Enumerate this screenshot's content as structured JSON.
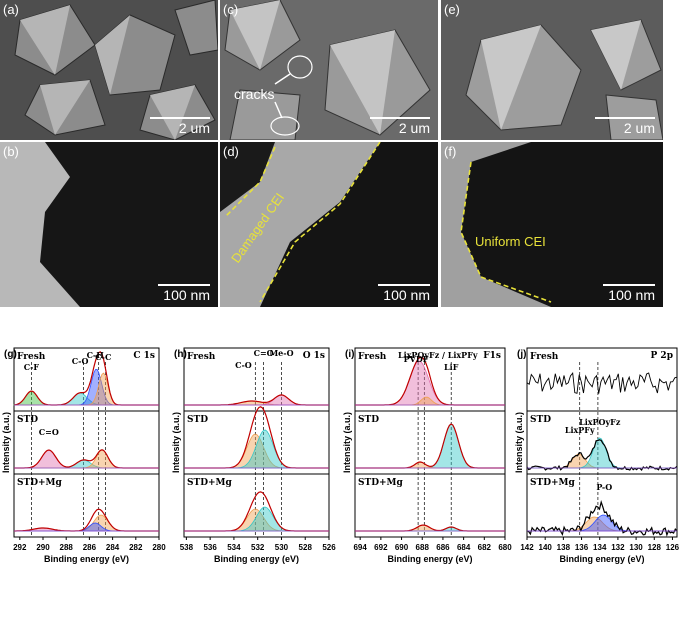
{
  "colors": {
    "sem_bg": "#5a5a5a",
    "tem_bg": "#1a1a1a",
    "cei_line": "#e8e23a",
    "env_red": "#c00000",
    "blue": "#3050ff",
    "green": "#3cbf3c",
    "cyan": "#34c8c8",
    "orange": "#f0a050",
    "pink": "#e070b0",
    "purple": "#9050d0"
  },
  "sem": [
    {
      "label": "(a)",
      "scale": "2 um"
    },
    {
      "label": "(c)",
      "scale": "2 um",
      "annotation": "cracks"
    },
    {
      "label": "(e)",
      "scale": "2 um"
    }
  ],
  "tem": [
    {
      "label": "(b)",
      "scale": "100 nm"
    },
    {
      "label": "(d)",
      "scale": "100 nm",
      "annotation": "Damaged CEI"
    },
    {
      "label": "(f)",
      "scale": "100 nm",
      "annotation": "Uniform CEI"
    }
  ],
  "xps": [
    {
      "label": "(g)",
      "element": "C 1s",
      "xticks": [
        "292",
        "290",
        "288",
        "286",
        "284",
        "282",
        "280"
      ],
      "xlim": [
        292.5,
        280
      ],
      "peaks_labels": [
        {
          "text": "C-F",
          "x": 291
        },
        {
          "text": "C-O",
          "x": 286.8
        },
        {
          "text": "C-H",
          "x": 285.5
        },
        {
          "text": "C-C",
          "x": 284.8
        },
        {
          "text": "C=O",
          "x": 289.5
        }
      ],
      "dashed_x": [
        291,
        286.5,
        285.2,
        284.6
      ]
    },
    {
      "label": "(h)",
      "element": "O 1s",
      "xticks": [
        "538",
        "536",
        "534",
        "532",
        "530",
        "528",
        "526"
      ],
      "xlim": [
        538.2,
        526
      ],
      "peaks_labels": [
        {
          "text": "C-O",
          "x": 533.2
        },
        {
          "text": "C=O",
          "x": 531.5
        },
        {
          "text": "Me-O",
          "x": 530
        }
      ],
      "dashed_x": [
        532.2,
        531.5,
        530
      ]
    },
    {
      "label": "(i)",
      "element": "F1s",
      "xticks": [
        "694",
        "692",
        "690",
        "688",
        "686",
        "684",
        "682",
        "680"
      ],
      "xlim": [
        694.5,
        680
      ],
      "peaks_labels": [
        {
          "text": "PVDF",
          "x": 688.6
        },
        {
          "text": "LixPOyFz / LixPFy",
          "x": 686.5
        },
        {
          "text": "LiF",
          "x": 685.2
        }
      ],
      "dashed_x": [
        688.4,
        687.8,
        685.2
      ]
    },
    {
      "label": "(j)",
      "element": "P 2p",
      "xticks": [
        "142",
        "140",
        "138",
        "136",
        "134",
        "132",
        "130",
        "128",
        "126"
      ],
      "xlim": [
        142,
        125.5
      ],
      "peaks_labels": [
        {
          "text": "LixPFy",
          "x": 136.2
        },
        {
          "text": "LixPOyFz",
          "x": 134
        },
        {
          "text": "P-O",
          "x": 133.5
        }
      ],
      "dashed_x": [
        136.2,
        134.2
      ]
    }
  ],
  "rows": [
    "Fresh",
    "STD",
    "STD+Mg"
  ],
  "ylabel": "Intensity (a.u.)",
  "xlabel": "Binding energy (eV)"
}
